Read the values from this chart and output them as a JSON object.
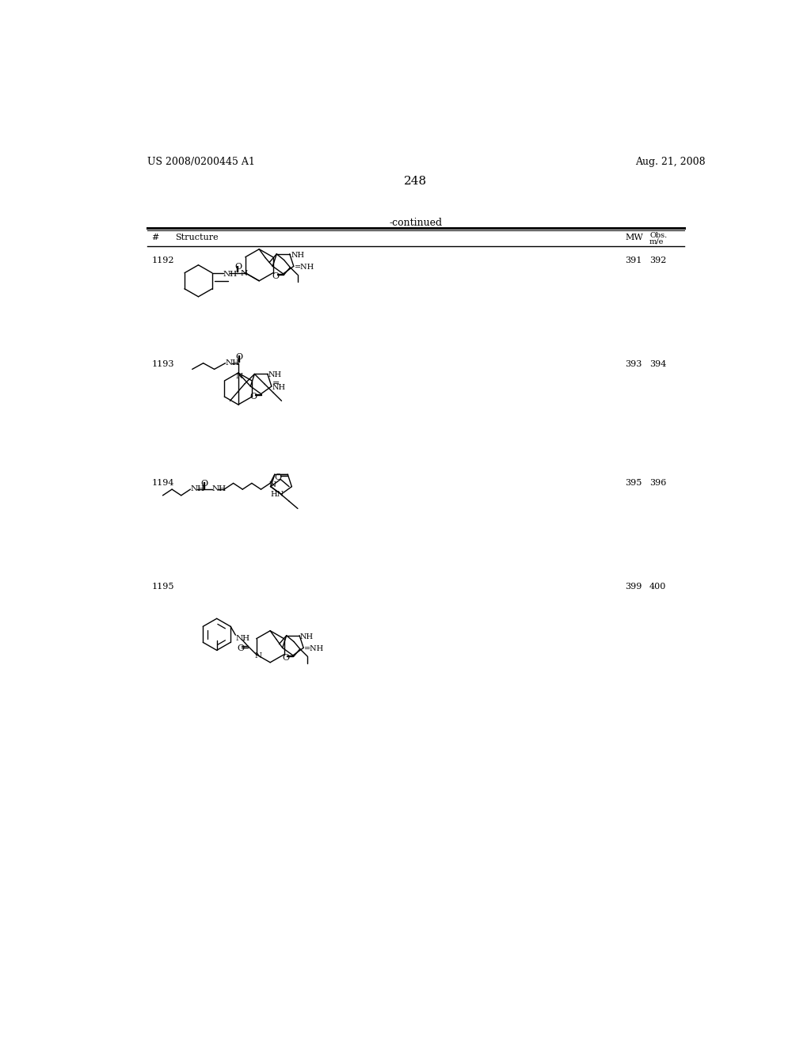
{
  "page_number": "248",
  "patent_number": "US 2008/0200445 A1",
  "patent_date": "Aug. 21, 2008",
  "continued": "-continued",
  "col_hash": "#",
  "col_structure": "Structure",
  "col_mw": "MW",
  "col_obs": "Obs.",
  "col_me": "m/e",
  "compounds": [
    {
      "num": "1192",
      "mw": "391",
      "obs": "392"
    },
    {
      "num": "1193",
      "mw": "393",
      "obs": "394"
    },
    {
      "num": "1194",
      "mw": "395",
      "obs": "396"
    },
    {
      "num": "1195",
      "mw": "399",
      "obs": "400"
    }
  ]
}
